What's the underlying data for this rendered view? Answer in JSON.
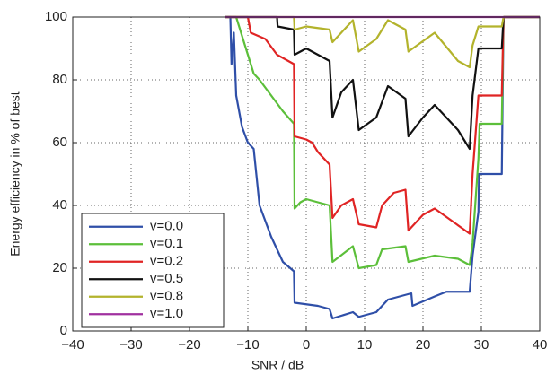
{
  "chart_data": {
    "type": "line",
    "xlabel": "SNR / dB",
    "ylabel": "Energy efficiency in % of best",
    "xlim": [
      -40,
      40
    ],
    "ylim": [
      0,
      100
    ],
    "xticks": [
      {
        "value": -40,
        "label": "−40"
      },
      {
        "value": -30,
        "label": "−30"
      },
      {
        "value": -20,
        "label": "−20"
      },
      {
        "value": -10,
        "label": "−10"
      },
      0,
      10,
      20,
      30,
      40
    ],
    "yticks": [
      0,
      20,
      40,
      60,
      80,
      100
    ],
    "grid": true,
    "legend": "lower left",
    "series": [
      {
        "name": "v=0.0",
        "color": "#2f4fa8",
        "x": [
          -14,
          -13,
          -12.8,
          -12.4,
          -12,
          -11,
          -10,
          -9,
          -8,
          -6,
          -4,
          -2.1,
          -2,
          0,
          2,
          4,
          4.5,
          8,
          9,
          12,
          14,
          18,
          18.2,
          22,
          24,
          28,
          28.5,
          29.5,
          29.6,
          33.5,
          33.8,
          40
        ],
        "values": [
          100,
          100,
          85,
          95,
          75,
          65,
          60,
          58,
          40,
          30,
          22,
          19,
          9,
          8.5,
          8,
          7,
          4,
          6,
          4.5,
          6,
          10,
          12,
          8,
          11,
          12.5,
          12.5,
          24,
          38,
          50,
          50,
          100,
          100
        ]
      },
      {
        "name": "v=0.1",
        "color": "#5cbf3a",
        "x": [
          -14,
          -12,
          -10,
          -9,
          -8,
          -6,
          -4,
          -2.1,
          -2,
          -1,
          0,
          4,
          4.5,
          8,
          9,
          12,
          13,
          17,
          17.5,
          22,
          26,
          28,
          28.5,
          29.5,
          29.7,
          33.5,
          33.8,
          40
        ],
        "values": [
          100,
          100,
          88,
          82,
          80,
          75,
          70,
          66,
          39,
          41,
          42,
          40,
          22,
          27,
          20,
          21,
          26,
          27,
          22,
          24,
          23,
          21,
          28,
          55,
          66,
          66,
          100,
          100
        ]
      },
      {
        "name": "v=0.2",
        "color": "#e02424",
        "x": [
          -14,
          -10,
          -9.5,
          -7,
          -5,
          -2.1,
          -2,
          0,
          1,
          2,
          4,
          4.5,
          6,
          8,
          9,
          12,
          13,
          15,
          17,
          17.5,
          20,
          22,
          25,
          28,
          28.5,
          29.5,
          33.5,
          33.8,
          40
        ],
        "values": [
          100,
          100,
          95,
          93,
          88,
          85,
          62,
          61,
          60,
          57,
          53,
          36,
          40,
          42,
          34,
          33,
          40,
          44,
          45,
          32,
          37,
          39,
          35,
          31,
          50,
          75,
          75,
          100,
          100
        ]
      },
      {
        "name": "v=0.5",
        "color": "#111111",
        "x": [
          -14,
          -5,
          -4.9,
          -2.1,
          -2,
          0,
          2,
          4,
          4.5,
          6,
          8,
          9,
          12,
          14,
          17,
          17.5,
          20,
          22,
          26,
          28,
          28.5,
          29.5,
          33.5,
          33.8,
          40
        ],
        "values": [
          100,
          100,
          97,
          96,
          88,
          90,
          88,
          86,
          68,
          76,
          80,
          64,
          68,
          78,
          74,
          62,
          68,
          72,
          64,
          58,
          75,
          90,
          90,
          100,
          100
        ]
      },
      {
        "name": "v=0.8",
        "color": "#b3b32c",
        "x": [
          -14,
          -2.1,
          -2,
          0,
          4,
          4.5,
          8,
          9,
          12,
          14,
          17,
          17.5,
          22,
          26,
          28,
          28.5,
          29.5,
          33.5,
          33.8,
          40
        ],
        "values": [
          100,
          100,
          96,
          97,
          96,
          92,
          99,
          89,
          93,
          99,
          96,
          89,
          95,
          86,
          84,
          91,
          97,
          97,
          100,
          100
        ]
      },
      {
        "name": "v=1.0",
        "color": "#a0309f",
        "x": [
          -14,
          40
        ],
        "values": [
          100,
          100
        ]
      }
    ]
  }
}
